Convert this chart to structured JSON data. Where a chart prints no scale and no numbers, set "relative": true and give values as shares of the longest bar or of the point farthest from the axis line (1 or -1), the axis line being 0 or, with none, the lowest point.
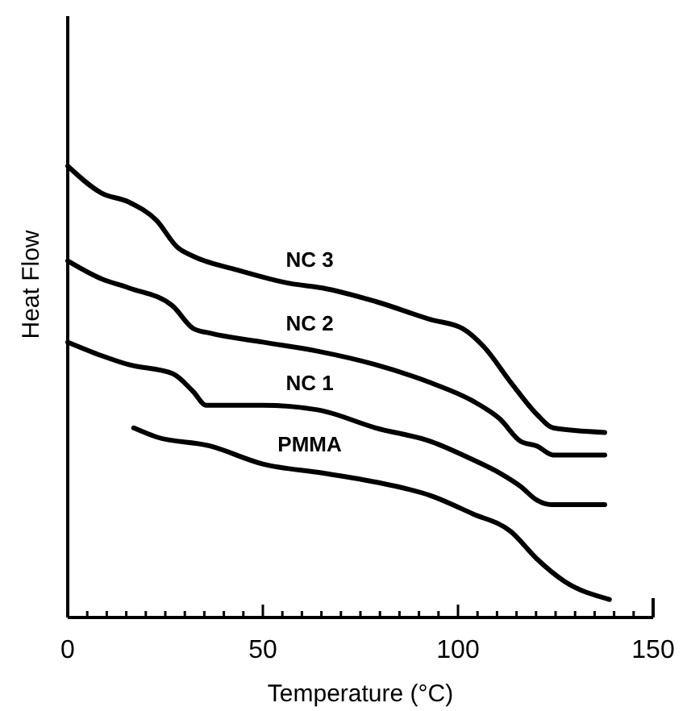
{
  "chart_data": {
    "type": "line",
    "relative": true,
    "xlabel": "Temperature (°C)",
    "ylabel": "Heat Flow",
    "xlim": [
      0,
      150
    ],
    "xticks": [
      0,
      {
        "value": 5,
        "label": null
      },
      {
        "value": 10,
        "label": null
      },
      {
        "value": 15,
        "label": null
      },
      {
        "value": 20,
        "label": null
      },
      {
        "value": 25,
        "label": null
      },
      {
        "value": 30,
        "label": null
      },
      {
        "value": 35,
        "label": null
      },
      {
        "value": 40,
        "label": null
      },
      {
        "value": 45,
        "label": null
      },
      50,
      {
        "value": 55,
        "label": null
      },
      {
        "value": 60,
        "label": null
      },
      {
        "value": 65,
        "label": null
      },
      {
        "value": 70,
        "label": null
      },
      {
        "value": 75,
        "label": null
      },
      {
        "value": 80,
        "label": null
      },
      {
        "value": 85,
        "label": null
      },
      {
        "value": 90,
        "label": null
      },
      {
        "value": 95,
        "label": null
      },
      100,
      {
        "value": 105,
        "label": null
      },
      {
        "value": 110,
        "label": null
      },
      {
        "value": 115,
        "label": null
      },
      {
        "value": 120,
        "label": null
      },
      {
        "value": 125,
        "label": null
      },
      {
        "value": 130,
        "label": null
      },
      {
        "value": 135,
        "label": null
      },
      {
        "value": 140,
        "label": null
      },
      {
        "value": 145,
        "label": null
      },
      150
    ],
    "grid": false,
    "series": [
      {
        "name": "NC 3",
        "color": "#000000",
        "x": [
          0,
          8.7,
          15.7,
          22.7,
          28.1,
          32.2,
          43.4,
          57.0,
          65.3,
          78.9,
          93.0,
          101.2,
          106.6,
          113.6,
          120.2,
          124.4,
          137.6
        ],
        "values": [
          1.0,
          0.94,
          0.92,
          0.88,
          0.82,
          0.8,
          0.77,
          0.74,
          0.73,
          0.7,
          0.66,
          0.64,
          0.6,
          0.52,
          0.45,
          0.42,
          0.41
        ]
      },
      {
        "name": "NC 2",
        "color": "#000000",
        "x": [
          0,
          8.7,
          15.7,
          26.9,
          32.2,
          36.4,
          50.0,
          64.0,
          78.9,
          93.0,
          103.7,
          110.7,
          116.1,
          120.2,
          124.4,
          137.6
        ],
        "values": [
          0.79,
          0.75,
          0.73,
          0.69,
          0.64,
          0.63,
          0.61,
          0.59,
          0.56,
          0.52,
          0.48,
          0.44,
          0.39,
          0.38,
          0.36,
          0.36
        ]
      },
      {
        "name": "NC 1",
        "color": "#000000",
        "x": [
          0,
          8.7,
          15.7,
          26.9,
          32.2,
          35.5,
          50.0,
          64.0,
          78.9,
          93.0,
          103.7,
          110.7,
          116.1,
          120.2,
          124.0,
          137.6
        ],
        "values": [
          0.61,
          0.58,
          0.56,
          0.54,
          0.5,
          0.47,
          0.47,
          0.46,
          0.42,
          0.39,
          0.35,
          0.32,
          0.29,
          0.26,
          0.25,
          0.25
        ]
      },
      {
        "name": "PMMA",
        "color": "#000000",
        "x": [
          16.9,
          22.7,
          36.4,
          50.0,
          65.3,
          78.9,
          93.0,
          103.7,
          113.6,
          120.2,
          127.3,
          138.8
        ],
        "values": [
          0.42,
          0.4,
          0.38,
          0.34,
          0.32,
          0.3,
          0.27,
          0.23,
          0.19,
          0.13,
          0.08,
          0.04
        ]
      }
    ]
  }
}
